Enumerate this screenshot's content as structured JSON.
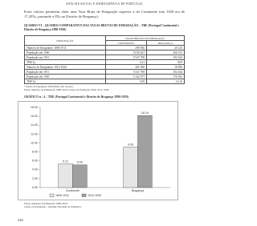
{
  "header": {
    "running_title": "ANÁLISE SOCIAL E DEMOGRÁFICA DE PORTUGAL"
  },
  "text": {
    "paragraph": "Estes valores permitem obter uma Taxa Bruta de Emigração superior à do Continente (em 1920 era de 17,29‰, passando a 8‰ no Distrito de Bragança)."
  },
  "table": {
    "caption": "QUADRO VI – QUADRO COMPARATIVO DAS TAXAS BRUTAS DE EMIGRAÇÃO – TBE (Portugal Continental e Distrito de Bragança 1890-1920)",
    "group_header": "TAXAS BRUTAS DE EMIGRAÇÃO",
    "columns": [
      "DESIGNAÇÃO",
      "CONTINENTE",
      "BRAGANÇA"
    ],
    "rows": [
      [
        "Número de Emigrantes 1890-1911",
        "298 966",
        "20 120"
      ],
      [
        "População em 1900",
        "5 039 267",
        "166 913"
      ],
      [
        "População em 1911",
        "5 547 708",
        "192 024"
      ],
      [
        "TBE ‰",
        "5,31",
        "9,09"
      ],
      [
        "Número de Emigrantes 1912-1920",
        "265 566",
        "18 998"
      ],
      [
        "População em 1911",
        "5 547 708",
        "192 024"
      ],
      [
        "População em 1920",
        "5 142 977",
        "176 392"
      ],
      [
        "TBE ‰",
        "5,09",
        "16,16"
      ]
    ]
  },
  "table_notes": [
    "* Dados de População 1920 (INE), não revistos.",
    "Fonte: Anuários de Emigração 1890-1920; Censos da População 1900, 1911, 1920."
  ],
  "chart_data": {
    "type": "bar",
    "title": "GRÁFICO n.º 4 – TBE (Portugal Continental e Distrito de Bragança 1890-1920)",
    "categories": [
      "Continente",
      "Bragança"
    ],
    "series": [
      {
        "name": "1890-1911",
        "color": "#e6e6e6",
        "values": [
          5.31,
          9.09
        ]
      },
      {
        "name": "1912-1920",
        "color": "#a0a0a0",
        "values": [
          5.09,
          16.16
        ]
      }
    ],
    "ylim": [
      0,
      18
    ],
    "yticks": [
      {
        "value": 0,
        "label": "0.00"
      },
      {
        "value": 2,
        "label": "2.00"
      },
      {
        "value": 4,
        "label": "4.00"
      },
      {
        "value": 6,
        "label": "6.00"
      },
      {
        "value": 8,
        "label": "8.00"
      },
      {
        "value": 10,
        "label": "10.00"
      },
      {
        "value": 12,
        "label": "12.00"
      },
      {
        "value": 14,
        "label": "14.00"
      },
      {
        "value": 16,
        "label": "16.00"
      },
      {
        "value": 18,
        "label": "18.00"
      }
    ]
  },
  "chart_notes": [
    "Fonte: Anuários de Emigração 1890-1920.",
    "Censos da População – Instituto Nacional de Estatística."
  ],
  "footer": {
    "page_number": "226"
  }
}
